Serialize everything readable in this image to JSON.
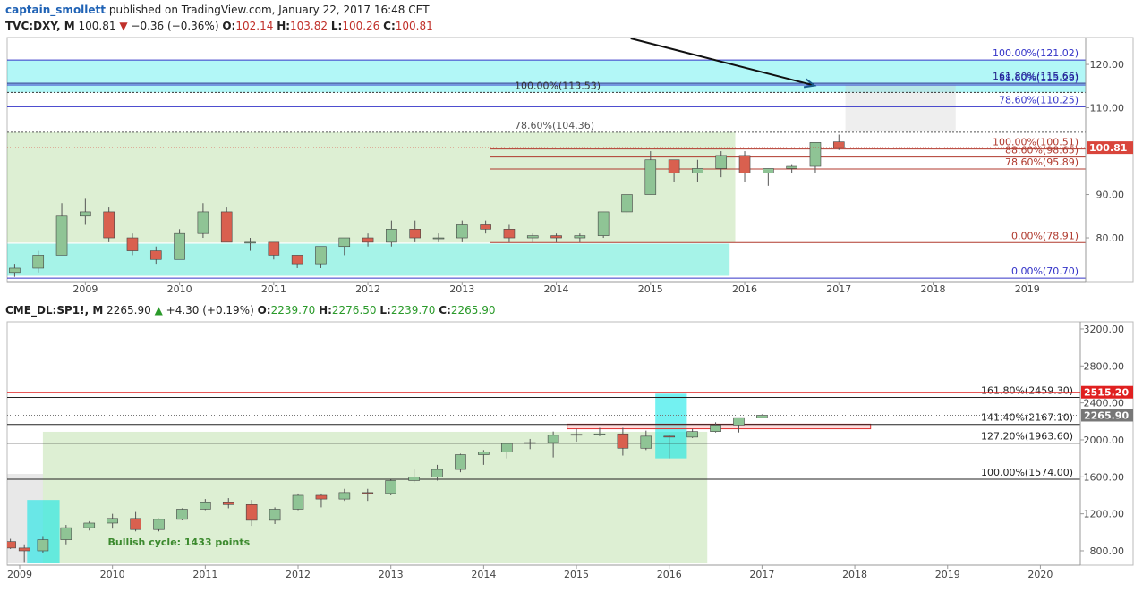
{
  "header": {
    "author": "captain_smollett",
    "text": "published on TradingView.com, January 22, 2017 16:48 CET"
  },
  "chart_data": [
    {
      "type": "candlestick",
      "legend": {
        "symbol": "TVC:DXY, M",
        "last": "100.81",
        "arrow": "▼",
        "change": "−0.36 (−0.36%)",
        "direction": "down",
        "ohlc": [
          {
            "label": "O:",
            "value": "102.14"
          },
          {
            "label": "H:",
            "value": "103.82"
          },
          {
            "label": "L:",
            "value": "100.26"
          },
          {
            "label": "C:",
            "value": "100.81"
          }
        ]
      },
      "xlim": [
        2008.17,
        2019.62
      ],
      "ylim": [
        69.9,
        126.2
      ],
      "xticks": [
        2009,
        2010,
        2011,
        2012,
        2013,
        2014,
        2015,
        2016,
        2017,
        2018,
        2019
      ],
      "yticks": [
        {
          "value": 80,
          "label": "80.00"
        },
        {
          "value": 90,
          "label": "90.00"
        },
        {
          "value": 110,
          "label": "110.00"
        },
        {
          "value": 120,
          "label": "120.00"
        }
      ],
      "up_color": "#8fc495",
      "down_color": "#d9604f",
      "candles": [
        {
          "x": 2008.25,
          "open": 72,
          "high": 74,
          "low": 71,
          "close": 73
        },
        {
          "x": 2008.5,
          "open": 73,
          "high": 77,
          "low": 72,
          "close": 76
        },
        {
          "x": 2008.75,
          "open": 76,
          "high": 88,
          "low": 76,
          "close": 85
        },
        {
          "x": 2009.0,
          "open": 85,
          "high": 89,
          "low": 83,
          "close": 86
        },
        {
          "x": 2009.25,
          "open": 86,
          "high": 87,
          "low": 79,
          "close": 80
        },
        {
          "x": 2009.5,
          "open": 80,
          "high": 81,
          "low": 76,
          "close": 77
        },
        {
          "x": 2009.75,
          "open": 77,
          "high": 78,
          "low": 74,
          "close": 75
        },
        {
          "x": 2010.0,
          "open": 75,
          "high": 82,
          "low": 75,
          "close": 81
        },
        {
          "x": 2010.25,
          "open": 81,
          "high": 88,
          "low": 80,
          "close": 86
        },
        {
          "x": 2010.5,
          "open": 86,
          "high": 87,
          "low": 79,
          "close": 79
        },
        {
          "x": 2010.75,
          "open": 79,
          "high": 80,
          "low": 77,
          "close": 79
        },
        {
          "x": 2011.0,
          "open": 79,
          "high": 79,
          "low": 75,
          "close": 76
        },
        {
          "x": 2011.25,
          "open": 76,
          "high": 76,
          "low": 73,
          "close": 74
        },
        {
          "x": 2011.5,
          "open": 74,
          "high": 78,
          "low": 73,
          "close": 78
        },
        {
          "x": 2011.75,
          "open": 78,
          "high": 80,
          "low": 76,
          "close": 80
        },
        {
          "x": 2012.0,
          "open": 80,
          "high": 81,
          "low": 78,
          "close": 79
        },
        {
          "x": 2012.25,
          "open": 79,
          "high": 84,
          "low": 78,
          "close": 82
        },
        {
          "x": 2012.5,
          "open": 82,
          "high": 84,
          "low": 79,
          "close": 80
        },
        {
          "x": 2012.75,
          "open": 80,
          "high": 81,
          "low": 79,
          "close": 80
        },
        {
          "x": 2013.0,
          "open": 80,
          "high": 84,
          "low": 79,
          "close": 83
        },
        {
          "x": 2013.25,
          "open": 83,
          "high": 84,
          "low": 81,
          "close": 82
        },
        {
          "x": 2013.5,
          "open": 82,
          "high": 83,
          "low": 79,
          "close": 80
        },
        {
          "x": 2013.75,
          "open": 80,
          "high": 81,
          "low": 79,
          "close": 80.5
        },
        {
          "x": 2014.0,
          "open": 80.5,
          "high": 81,
          "low": 79,
          "close": 80
        },
        {
          "x": 2014.25,
          "open": 80,
          "high": 81,
          "low": 79,
          "close": 80.5
        },
        {
          "x": 2014.5,
          "open": 80.5,
          "high": 86,
          "low": 80,
          "close": 86
        },
        {
          "x": 2014.75,
          "open": 86,
          "high": 90,
          "low": 85,
          "close": 90
        },
        {
          "x": 2015.0,
          "open": 90,
          "high": 100,
          "low": 90,
          "close": 98
        },
        {
          "x": 2015.25,
          "open": 98,
          "high": 98,
          "low": 93,
          "close": 95
        },
        {
          "x": 2015.5,
          "open": 95,
          "high": 98,
          "low": 93,
          "close": 96
        },
        {
          "x": 2015.75,
          "open": 96,
          "high": 100,
          "low": 94,
          "close": 99
        },
        {
          "x": 2016.0,
          "open": 99,
          "high": 100,
          "low": 93,
          "close": 95
        },
        {
          "x": 2016.25,
          "open": 95,
          "high": 96,
          "low": 92,
          "close": 96
        },
        {
          "x": 2016.5,
          "open": 96,
          "high": 97,
          "low": 95,
          "close": 96.5
        },
        {
          "x": 2016.75,
          "open": 96.5,
          "high": 102,
          "low": 95,
          "close": 102
        },
        {
          "x": 2017.0,
          "open": 102.14,
          "high": 103.82,
          "low": 100.26,
          "close": 100.81
        }
      ],
      "zones": [
        {
          "x": [
            2008.17,
            2019.62
          ],
          "y": [
            113.53,
            121.02
          ],
          "color": "rgba(0,230,230,0.3)"
        },
        {
          "x": [
            2008.17,
            2015.9
          ],
          "y": [
            78.91,
            104.36
          ],
          "color": "rgba(120,190,80,0.25)"
        },
        {
          "x": [
            2008.17,
            2015.84
          ],
          "y": [
            71.24,
            78.66
          ],
          "color": "rgba(0,220,190,0.35)"
        },
        {
          "x": [
            2017.07,
            2018.24
          ],
          "y": [
            104.5,
            115.2
          ],
          "color": "rgba(200,200,200,0.3)"
        }
      ],
      "levels": [
        {
          "value": 121.02,
          "label": "100.00%(121.02)",
          "color": "#3434c8"
        },
        {
          "value": 115.28,
          "label": "88.60%(115.28)",
          "color": "#3434c8"
        },
        {
          "value": 115.66,
          "label": "161.80%(115.66)",
          "color": "#222288"
        },
        {
          "value": 113.53,
          "label": "100.00%(113.53)",
          "color": "#333333",
          "style": "dotted"
        },
        {
          "value": 110.25,
          "label": "78.60%(110.25)",
          "color": "#3434c8"
        },
        {
          "value": 104.36,
          "label": "78.60%(104.36)",
          "color": "#555555",
          "style": "dotted"
        },
        {
          "value": 100.51,
          "label": "100.00%(100.51)",
          "color": "#b03a2e",
          "from": 2013.3
        },
        {
          "value": 98.65,
          "label": "88.60%(98.65)",
          "color": "#b03a2e",
          "from": 2013.3
        },
        {
          "value": 95.89,
          "label": "78.60%(95.89)",
          "color": "#b03a2e",
          "from": 2013.3
        },
        {
          "value": 78.91,
          "label": "0.00%(78.91)",
          "color": "#b03a2e",
          "from": 2013.3
        },
        {
          "value": 70.7,
          "label": "0.00%(70.70)",
          "color": "#3434c8"
        }
      ],
      "price_levels": [
        {
          "value": 100.81,
          "label": "100.81",
          "color": "#d9453b"
        }
      ],
      "arrow": {
        "from": [
          2014.79,
          126
        ],
        "to": [
          2016.74,
          115.15
        ]
      }
    },
    {
      "type": "candlestick",
      "legend": {
        "symbol": "CME_DL:SP1!, M",
        "last": "2265.90",
        "arrow": "▲",
        "change": "+4.30 (+0.19%)",
        "direction": "up",
        "ohlc": [
          {
            "label": "O:",
            "value": "2239.70"
          },
          {
            "label": "H:",
            "value": "2276.50"
          },
          {
            "label": "L:",
            "value": "2239.70"
          },
          {
            "label": "C:",
            "value": "2265.90"
          }
        ]
      },
      "xlim": [
        2008.865,
        2020.43
      ],
      "ylim": [
        645,
        3277
      ],
      "xticks": [
        2009,
        2010,
        2011,
        2012,
        2013,
        2014,
        2015,
        2016,
        2017,
        2018,
        2019,
        2020
      ],
      "yticks": [
        {
          "value": 800,
          "label": "800.00"
        },
        {
          "value": 1200,
          "label": "1200.00"
        },
        {
          "value": 1600,
          "label": "1600.00"
        },
        {
          "value": 2000,
          "label": "2000.00"
        },
        {
          "value": 2400,
          "label": "2400.00"
        },
        {
          "value": 2800,
          "label": "2800.00"
        },
        {
          "value": 3200,
          "label": "3200.00"
        }
      ],
      "up_color": "#8fc495",
      "down_color": "#d9604f",
      "candles": [
        {
          "x": 2008.9,
          "open": 900,
          "high": 930,
          "low": 820,
          "close": 830
        },
        {
          "x": 2009.05,
          "open": 830,
          "high": 870,
          "low": 670,
          "close": 800
        },
        {
          "x": 2009.25,
          "open": 800,
          "high": 950,
          "low": 780,
          "close": 920
        },
        {
          "x": 2009.5,
          "open": 920,
          "high": 1080,
          "low": 870,
          "close": 1050
        },
        {
          "x": 2009.75,
          "open": 1050,
          "high": 1120,
          "low": 1020,
          "close": 1100
        },
        {
          "x": 2010.0,
          "open": 1100,
          "high": 1200,
          "low": 1040,
          "close": 1150
        },
        {
          "x": 2010.25,
          "open": 1150,
          "high": 1220,
          "low": 1010,
          "close": 1030
        },
        {
          "x": 2010.5,
          "open": 1030,
          "high": 1150,
          "low": 1010,
          "close": 1140
        },
        {
          "x": 2010.75,
          "open": 1140,
          "high": 1260,
          "low": 1130,
          "close": 1250
        },
        {
          "x": 2011.0,
          "open": 1250,
          "high": 1360,
          "low": 1240,
          "close": 1320
        },
        {
          "x": 2011.25,
          "open": 1320,
          "high": 1370,
          "low": 1260,
          "close": 1300
        },
        {
          "x": 2011.5,
          "open": 1300,
          "high": 1350,
          "low": 1070,
          "close": 1130
        },
        {
          "x": 2011.75,
          "open": 1130,
          "high": 1270,
          "low": 1090,
          "close": 1250
        },
        {
          "x": 2012.0,
          "open": 1250,
          "high": 1420,
          "low": 1240,
          "close": 1400
        },
        {
          "x": 2012.25,
          "open": 1400,
          "high": 1420,
          "low": 1270,
          "close": 1360
        },
        {
          "x": 2012.5,
          "open": 1360,
          "high": 1470,
          "low": 1340,
          "close": 1430
        },
        {
          "x": 2012.75,
          "open": 1430,
          "high": 1470,
          "low": 1340,
          "close": 1420
        },
        {
          "x": 2013.0,
          "open": 1420,
          "high": 1570,
          "low": 1400,
          "close": 1560
        },
        {
          "x": 2013.25,
          "open": 1560,
          "high": 1690,
          "low": 1540,
          "close": 1600
        },
        {
          "x": 2013.5,
          "open": 1600,
          "high": 1730,
          "low": 1560,
          "close": 1680
        },
        {
          "x": 2013.75,
          "open": 1680,
          "high": 1850,
          "low": 1650,
          "close": 1840
        },
        {
          "x": 2014.0,
          "open": 1840,
          "high": 1890,
          "low": 1730,
          "close": 1870
        },
        {
          "x": 2014.25,
          "open": 1870,
          "high": 1970,
          "low": 1800,
          "close": 1960
        },
        {
          "x": 2014.5,
          "open": 1960,
          "high": 2010,
          "low": 1900,
          "close": 1970
        },
        {
          "x": 2014.75,
          "open": 1970,
          "high": 2090,
          "low": 1810,
          "close": 2050
        },
        {
          "x": 2015.0,
          "open": 2050,
          "high": 2120,
          "low": 1980,
          "close": 2060
        },
        {
          "x": 2015.25,
          "open": 2060,
          "high": 2130,
          "low": 2040,
          "close": 2065
        },
        {
          "x": 2015.5,
          "open": 2065,
          "high": 2130,
          "low": 1830,
          "close": 1910
        },
        {
          "x": 2015.75,
          "open": 1910,
          "high": 2100,
          "low": 1890,
          "close": 2040
        },
        {
          "x": 2016.0,
          "open": 2040,
          "high": 2050,
          "low": 1800,
          "close": 2030
        },
        {
          "x": 2016.25,
          "open": 2030,
          "high": 2120,
          "low": 2020,
          "close": 2090
        },
        {
          "x": 2016.5,
          "open": 2090,
          "high": 2190,
          "low": 2080,
          "close": 2160
        },
        {
          "x": 2016.75,
          "open": 2160,
          "high": 2220,
          "low": 2080,
          "close": 2240
        },
        {
          "x": 2017.0,
          "open": 2239.7,
          "high": 2276.5,
          "low": 2239.7,
          "close": 2265.9
        }
      ],
      "zones": [
        {
          "x": [
            2008.865,
            2009.25
          ],
          "y": [
            664,
            1632
          ],
          "color": "rgba(180,180,180,0.3)"
        },
        {
          "x": [
            2009.25,
            2016.41
          ],
          "y": [
            664,
            2087
          ],
          "color": "rgba(120,190,80,0.25)"
        },
        {
          "x": [
            2009.08,
            2009.43
          ],
          "y": [
            664,
            1350
          ],
          "color": "rgba(0,230,230,0.55)"
        },
        {
          "x": [
            2015.85,
            2016.19
          ],
          "y": [
            1800,
            2500
          ],
          "color": "rgba(0,230,230,0.55)"
        },
        {
          "x": [
            2014.9,
            2018.17
          ],
          "y": [
            2120,
            2170
          ],
          "color": "rgba(255,170,170,0.4)",
          "stroke": "#e03030"
        }
      ],
      "levels": [
        {
          "value": 2459.3,
          "label": "161.80%(2459.30)",
          "color": "#222222"
        },
        {
          "value": 2167.1,
          "label": "141.40%(2167.10)",
          "color": "#222222"
        },
        {
          "value": 1963.6,
          "label": "127.20%(1963.60)",
          "color": "#222222"
        },
        {
          "value": 1574.0,
          "label": "100.00%(1574.00)",
          "color": "#222222"
        }
      ],
      "price_levels": [
        {
          "value": 2515.2,
          "label": "2515.20",
          "color": "#e02020",
          "line": true
        },
        {
          "value": 2265.9,
          "label": "2265.90",
          "color": "#777777"
        }
      ],
      "annotation": {
        "text": "Bullish cycle: 1433 points",
        "x": 2009.95,
        "y": 860,
        "color": "#3c8a2e"
      }
    }
  ]
}
